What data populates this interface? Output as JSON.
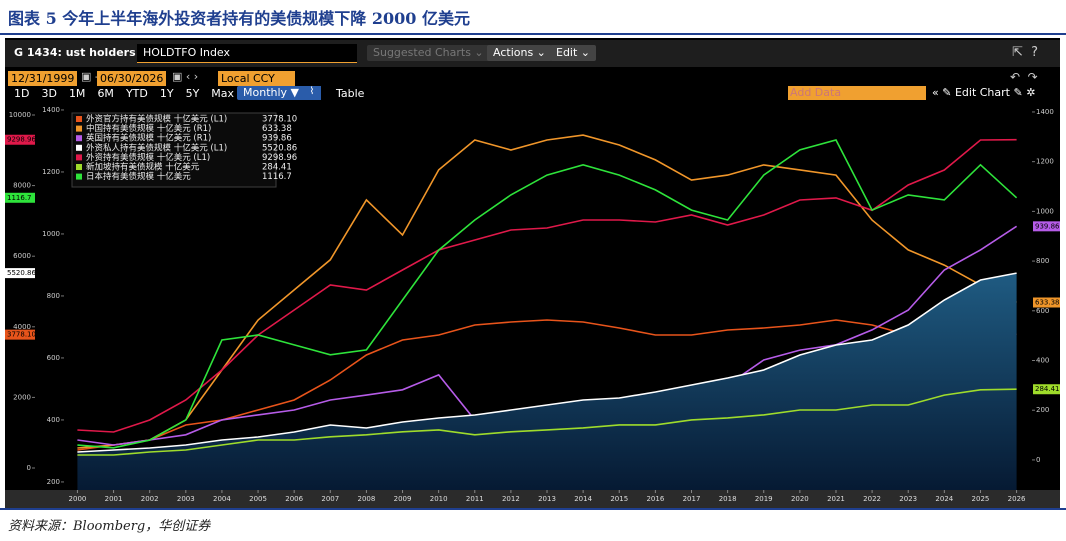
{
  "header": {
    "title": "图表 5 今年上半年海外投资者持有的美债规模下降 2000 亿美元"
  },
  "terminal": {
    "name": "G 1434: ust holders",
    "ticker": "HOLDTFO Index",
    "suggested": "Suggested Charts",
    "actions": "Actions",
    "edit": "Edit",
    "start_date": "12/31/1999",
    "end_date": "06/30/2026",
    "currency": "Local CCY",
    "periods": [
      "1D",
      "3D",
      "1M",
      "6M",
      "YTD",
      "1Y",
      "5Y",
      "Max"
    ],
    "frequency": "Monthly ▼",
    "table": "Table",
    "add_data": "Add Data",
    "edit_chart": "Edit Chart"
  },
  "source": "资料来源：Bloomberg，华创证券",
  "chart_data": {
    "type": "line",
    "x": [
      2000,
      2001,
      2002,
      2003,
      2004,
      2005,
      2006,
      2007,
      2008,
      2009,
      2010,
      2011,
      2012,
      2013,
      2014,
      2015,
      2016,
      2017,
      2018,
      2019,
      2020,
      2021,
      2022,
      2023,
      2024,
      2025,
      2026
    ],
    "xlim": [
      1999.6,
      2026.15
    ],
    "xticks": [
      2000,
      2001,
      2002,
      2003,
      2004,
      2005,
      2006,
      2007,
      2008,
      2009,
      2010,
      2011,
      2012,
      2013,
      2014,
      2015,
      2016,
      2017,
      2018,
      2019,
      2020,
      2021,
      2022,
      2023,
      2024,
      2025,
      2026
    ],
    "ylim": [
      -623,
      10283
    ],
    "yticks": [
      0,
      2000,
      4000,
      6000,
      8000,
      10000
    ],
    "y3lim": [
      174,
      1416
    ],
    "y3ticks": [
      200,
      400,
      600,
      800,
      1000,
      1200,
      1400
    ],
    "y2lim": [
      -121,
      1428
    ],
    "y2ticks": [
      0,
      200,
      400,
      600,
      800,
      1000,
      1200,
      1400
    ],
    "grid": false,
    "legend": "upper left",
    "series": [
      {
        "name": "外资官方持有美债规模 十亿美元 (L1)",
        "color": "#e8541b",
        "axis": "y",
        "last_label": "3778.10",
        "values": [
          510,
          652,
          793,
          1218,
          1360,
          1643,
          1926,
          2493,
          3201,
          3626,
          3768,
          4051,
          4136,
          4193,
          4136,
          3966,
          3768,
          3768,
          3909,
          3966,
          4051,
          4193,
          4051,
          3768,
          3909,
          3966,
          3778.1
        ]
      },
      {
        "name": "中国持有美债规模 十亿美元 (R1)",
        "color": "#f0962a",
        "axis": "y2",
        "last_label": "633.38",
        "values": [
          48,
          60,
          80,
          161,
          362,
          563,
          684,
          805,
          1046,
          905,
          1167,
          1287,
          1247,
          1287,
          1307,
          1267,
          1207,
          1126,
          1146,
          1187,
          1167,
          1146,
          965,
          845,
          784,
          704,
          633.38
        ]
      },
      {
        "name": "英国持有美债规模 十亿美元 (R1)",
        "color": "#b65ce8",
        "axis": "y2",
        "last_label": "939.86",
        "values": [
          80,
          60,
          80,
          101,
          161,
          181,
          201,
          241,
          261,
          282,
          342,
          161,
          161,
          169,
          181,
          201,
          221,
          261,
          302,
          402,
          442,
          463,
          523,
          603,
          764,
          845,
          939.86
        ]
      },
      {
        "name": "外资私人持有美债规模 十亿美元 (L1)",
        "color": "#ffffff",
        "axis": "y",
        "area": true,
        "last_label": "5520.86",
        "values": [
          453,
          510,
          567,
          652,
          793,
          878,
          1020,
          1218,
          1133,
          1303,
          1416,
          1501,
          1643,
          1785,
          1926,
          1983,
          2153,
          2351,
          2550,
          2776,
          3201,
          3484,
          3626,
          4051,
          4759,
          5326,
          5520.86
        ]
      },
      {
        "name": "外资持有美债规模 十亿美元 (L1)",
        "color": "#e0194a",
        "axis": "y",
        "last_label": "9298.96",
        "values": [
          1076,
          1020,
          1360,
          1926,
          2776,
          3768,
          4476,
          5184,
          5040,
          5609,
          6176,
          6459,
          6742,
          6800,
          7025,
          7025,
          6970,
          7167,
          6884,
          7167,
          7592,
          7650,
          7300,
          8017,
          8442,
          9292,
          9298.96
        ]
      },
      {
        "name": "新加坡持有美债规模 十亿美元",
        "color": "#9fdc2b",
        "axis": "y2",
        "last_label": "284.41",
        "values": [
          20,
          20,
          32,
          40,
          60,
          80,
          80,
          93,
          101,
          113,
          121,
          101,
          113,
          121,
          129,
          141,
          141,
          161,
          169,
          181,
          201,
          201,
          221,
          221,
          261,
          282,
          284.41
        ]
      },
      {
        "name": "日本持有美债规模 十亿美元",
        "color": "#2ee33b",
        "axis": "y3",
        "last_label": "1116.7",
        "values": [
          319,
          310,
          335,
          400,
          658,
          674,
          642,
          610,
          626,
          787,
          948,
          1045,
          1126,
          1190,
          1223,
          1190,
          1142,
          1077,
          1045,
          1190,
          1271,
          1303,
          1077,
          1126,
          1110,
          1223,
          1116.7
        ]
      }
    ]
  }
}
